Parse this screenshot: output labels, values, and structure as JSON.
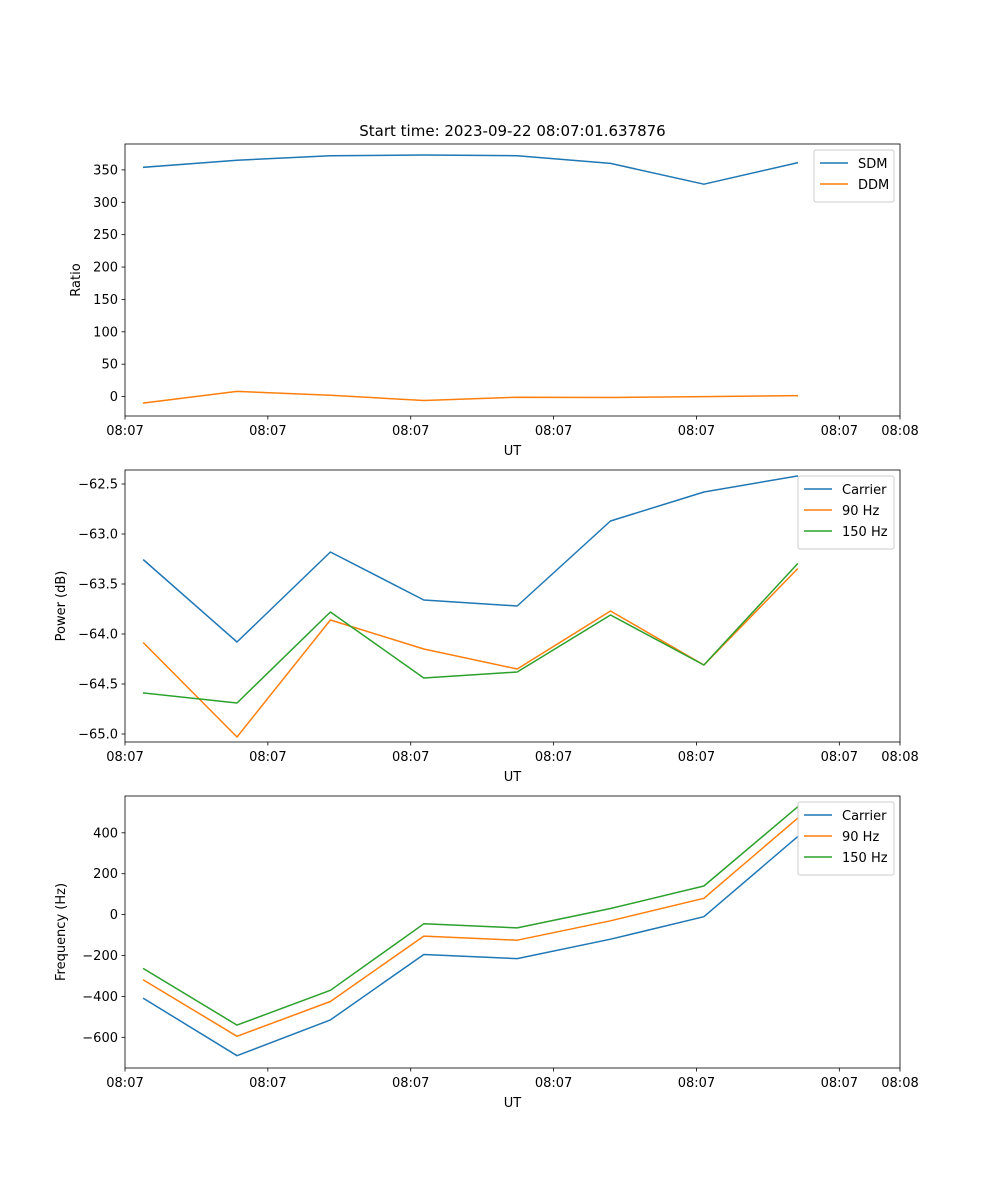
{
  "figure": {
    "title": "Start time: 2023-09-22 08:07:01.637876"
  },
  "colors": {
    "blue": "#1f77b4",
    "orange": "#ff7f0e",
    "green": "#2ca02c"
  },
  "chart_data": [
    {
      "type": "line",
      "title": "Start time: 2023-09-22 08:07:01.637876",
      "xlabel": "UT",
      "ylabel": "Ratio",
      "x": [
        1,
        2,
        3,
        4,
        5,
        6,
        7,
        8
      ],
      "xlim": [
        0.8,
        9.1
      ],
      "xticks": [
        0.8,
        2.33,
        3.86,
        5.39,
        6.92,
        8.45,
        9.1
      ],
      "xticklabels": [
        "08:07",
        "08:07",
        "08:07",
        "08:07",
        "08:07",
        "08:07",
        "08:08"
      ],
      "ylim": [
        -30,
        390
      ],
      "yticks": [
        0,
        50,
        100,
        150,
        200,
        250,
        300,
        350
      ],
      "yticklabels": [
        "0",
        "50",
        "100",
        "150",
        "200",
        "250",
        "300",
        "350"
      ],
      "legend": "top-right",
      "series": [
        {
          "name": "SDM",
          "color": "#1f77b4",
          "values": [
            354,
            365,
            372,
            373,
            372,
            360,
            328,
            361
          ]
        },
        {
          "name": "DDM",
          "color": "#ff7f0e",
          "values": [
            -10,
            8,
            2,
            -6,
            -1,
            -1.5,
            0,
            1.5
          ]
        }
      ]
    },
    {
      "type": "line",
      "title": "",
      "xlabel": "UT",
      "ylabel": "Power (dB)",
      "x": [
        1,
        2,
        3,
        4,
        5,
        6,
        7,
        8
      ],
      "xlim": [
        0.8,
        9.1
      ],
      "xticks": [
        0.8,
        2.33,
        3.86,
        5.39,
        6.92,
        8.45,
        9.1
      ],
      "xticklabels": [
        "08:07",
        "08:07",
        "08:07",
        "08:07",
        "08:07",
        "08:07",
        "08:08"
      ],
      "ylim": [
        -65.08,
        -62.36
      ],
      "yticks": [
        -65.0,
        -64.5,
        -64.0,
        -63.5,
        -63.0,
        -62.5
      ],
      "yticklabels": [
        "−65.0",
        "−64.5",
        "−64.0",
        "−63.5",
        "−63.0",
        "−62.5"
      ],
      "legend": "top-right",
      "series": [
        {
          "name": "Carrier",
          "color": "#1f77b4",
          "values": [
            -63.26,
            -64.08,
            -63.18,
            -63.66,
            -63.72,
            -62.87,
            -62.58,
            -62.42
          ]
        },
        {
          "name": "90 Hz",
          "color": "#ff7f0e",
          "values": [
            -64.09,
            -65.03,
            -63.86,
            -64.15,
            -64.35,
            -63.77,
            -64.31,
            -63.35
          ]
        },
        {
          "name": "150 Hz",
          "color": "#2ca02c",
          "values": [
            -64.59,
            -64.69,
            -63.78,
            -64.44,
            -64.38,
            -63.81,
            -64.31,
            -63.3
          ]
        }
      ]
    },
    {
      "type": "line",
      "title": "",
      "xlabel": "UT",
      "ylabel": "Frequency (Hz)",
      "x": [
        1,
        2,
        3,
        4,
        5,
        6,
        7,
        8
      ],
      "xlim": [
        0.8,
        9.1
      ],
      "xticks": [
        0.8,
        2.33,
        3.86,
        5.39,
        6.92,
        8.45,
        9.1
      ],
      "xticklabels": [
        "08:07",
        "08:07",
        "08:07",
        "08:07",
        "08:07",
        "08:07",
        "08:08"
      ],
      "ylim": [
        -750,
        580
      ],
      "yticks": [
        -600,
        -400,
        -200,
        0,
        200,
        400
      ],
      "yticklabels": [
        "−600",
        "−400",
        "−200",
        "0",
        "200",
        "400"
      ],
      "legend": "top-right",
      "series": [
        {
          "name": "Carrier",
          "color": "#1f77b4",
          "values": [
            -410,
            -690,
            -515,
            -195,
            -215,
            -120,
            -10,
            380
          ]
        },
        {
          "name": "90 Hz",
          "color": "#ff7f0e",
          "values": [
            -320,
            -595,
            -425,
            -105,
            -125,
            -30,
            80,
            470
          ]
        },
        {
          "name": "150 Hz",
          "color": "#2ca02c",
          "values": [
            -265,
            -540,
            -370,
            -45,
            -65,
            30,
            140,
            525
          ]
        }
      ]
    }
  ]
}
